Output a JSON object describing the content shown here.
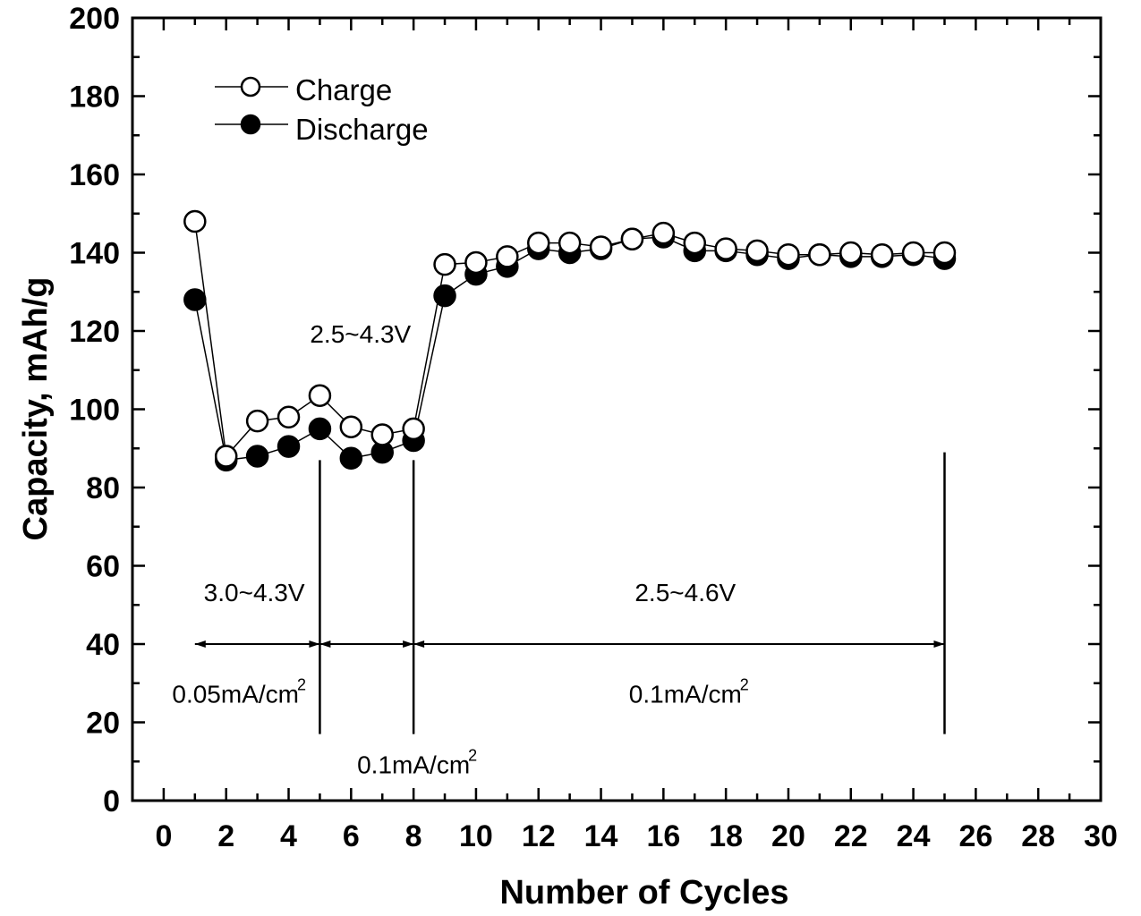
{
  "chart_data": {
    "type": "scatter",
    "xlabel": "Number of Cycles",
    "ylabel": "Capacity, mAh/g",
    "xlim": [
      -1,
      30
    ],
    "ylim": [
      0,
      200
    ],
    "xticks": [
      0,
      2,
      4,
      6,
      8,
      10,
      12,
      14,
      16,
      18,
      20,
      22,
      24,
      26,
      28,
      30
    ],
    "yticks": [
      0,
      20,
      40,
      60,
      80,
      100,
      120,
      140,
      160,
      180,
      200
    ],
    "legend_position": "top-left",
    "series": [
      {
        "name": "Charge",
        "marker": "open-circle",
        "x": [
          1,
          2,
          3,
          4,
          5,
          6,
          7,
          8,
          9,
          10,
          11,
          12,
          13,
          14,
          15,
          16,
          17,
          18,
          19,
          20,
          21,
          22,
          23,
          24,
          25
        ],
        "y": [
          148,
          88,
          97,
          98,
          103.5,
          95.5,
          93.5,
          95,
          137,
          137.5,
          139,
          142.5,
          142.5,
          141.5,
          143.5,
          145,
          142.5,
          141,
          140.5,
          139.5,
          139.5,
          140,
          139.5,
          140,
          140
        ]
      },
      {
        "name": "Discharge",
        "marker": "filled-circle",
        "x": [
          1,
          2,
          3,
          4,
          5,
          6,
          7,
          8,
          9,
          10,
          11,
          12,
          13,
          14,
          15,
          16,
          17,
          18,
          19,
          20,
          21,
          22,
          23,
          24,
          25
        ],
        "y": [
          128,
          87,
          88,
          90.5,
          95,
          87.5,
          89,
          92,
          129,
          134.5,
          136.5,
          141,
          140,
          141,
          143.5,
          144,
          140.5,
          140.5,
          139.5,
          138.5,
          139.5,
          139,
          139,
          139.5,
          138.5
        ]
      }
    ],
    "annotations": [
      {
        "text": "2.5~4.3V",
        "x": 6.3,
        "y": 117
      },
      {
        "text": "3.0~4.3V",
        "x": 2.9,
        "y": 51
      },
      {
        "text": "2.5~4.6V",
        "x": 16.7,
        "y": 51
      },
      {
        "text": "0.05mA/cm",
        "superscript": "2",
        "x": 2.3,
        "y": 25
      },
      {
        "text": "0.1mA/cm",
        "superscript": "2",
        "x": 16.7,
        "y": 25
      },
      {
        "text": "0.1mA/cm",
        "superscript": "2",
        "x": 8.0,
        "y": 7
      }
    ],
    "vertical_markers": [
      {
        "x": 5,
        "y_from": 17,
        "y_to": 87
      },
      {
        "x": 8,
        "y_from": 17,
        "y_to": 87
      },
      {
        "x": 25,
        "y_from": 17,
        "y_to": 89
      }
    ],
    "range_arrows": [
      {
        "x_from": 1,
        "x_to": 5,
        "y": 40
      },
      {
        "x_from": 5,
        "x_to": 8,
        "y": 40
      },
      {
        "x_from": 8,
        "x_to": 25,
        "y": 40
      }
    ]
  }
}
